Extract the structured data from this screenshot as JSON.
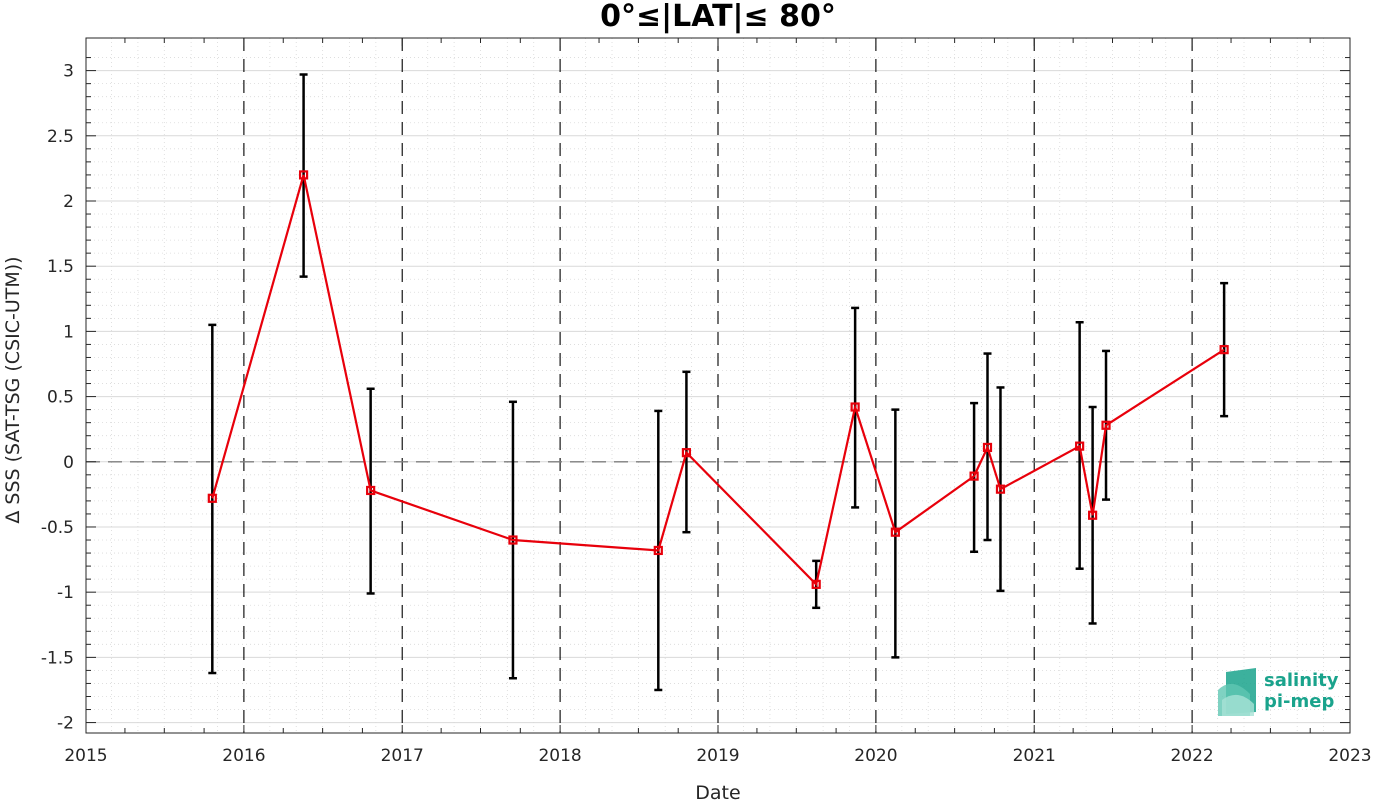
{
  "chart_data": {
    "type": "line",
    "title": "0°≤|LAT|≤ 80°",
    "xlabel": "Date",
    "ylabel": "Δ SSS (SAT-TSG (CSIC-UTM))",
    "xlim": [
      "2015-01-01",
      "2023-01-01"
    ],
    "ylim": [
      -2.08,
      3.25
    ],
    "x_tick_labels": [
      "2015",
      "2016",
      "2017",
      "2018",
      "2019",
      "2020",
      "2021",
      "2022",
      "2023"
    ],
    "y_tick_labels": [
      "-2",
      "-1.5",
      "-1",
      "-0.5",
      "0",
      "0.5",
      "1",
      "1.5",
      "2",
      "2.5",
      "3"
    ],
    "y_ticks": [
      -2,
      -1.5,
      -1,
      -0.5,
      0,
      0.5,
      1,
      1.5,
      2,
      2.5,
      3
    ],
    "grid": true,
    "year_dividers": [
      "2016-01-01",
      "2017-01-01",
      "2018-01-01",
      "2019-01-01",
      "2020-01-01",
      "2021-01-01",
      "2022-01-01"
    ],
    "zero_line": 0,
    "series": [
      {
        "color": "#e8000b",
        "marker": "square",
        "x": [
          "2015-10-20",
          "2016-05-18",
          "2016-10-20",
          "2017-09-14",
          "2018-08-16",
          "2018-10-20",
          "2019-08-16",
          "2019-11-14",
          "2020-02-15",
          "2020-08-15",
          "2020-09-15",
          "2020-10-15",
          "2021-04-16",
          "2021-05-16",
          "2021-06-16",
          "2022-03-16"
        ],
        "y": [
          -0.28,
          2.2,
          -0.22,
          -0.6,
          -0.68,
          0.07,
          -0.94,
          0.42,
          -0.54,
          -0.11,
          0.11,
          -0.21,
          0.12,
          -0.41,
          0.28,
          0.86
        ],
        "err_low": [
          -1.62,
          1.42,
          -1.01,
          -1.66,
          -1.75,
          -0.54,
          -1.12,
          -0.35,
          -1.5,
          -0.69,
          -0.6,
          -0.99,
          -0.82,
          -1.24,
          -0.29,
          0.35
        ],
        "err_high": [
          1.05,
          2.97,
          0.56,
          0.46,
          0.39,
          0.69,
          -0.76,
          1.18,
          0.4,
          0.45,
          0.83,
          0.57,
          1.07,
          0.42,
          0.85,
          1.37
        ]
      }
    ]
  },
  "colors": {
    "series": "#e8000b",
    "errorbar": "#000000",
    "grid": "#d9d9d9",
    "zero_line": "#7f7f7f",
    "logo": "#1aa38c"
  },
  "logo": {
    "line1": "salinity",
    "line2": "pi-mep"
  }
}
